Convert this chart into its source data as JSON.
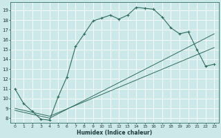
{
  "title": "",
  "xlabel": "Humidex (Indice chaleur)",
  "bg_color": "#cde8e8",
  "grid_color": "#ffffff",
  "line_color": "#2e6b5e",
  "xlim": [
    -0.5,
    23.5
  ],
  "ylim": [
    7.5,
    19.8
  ],
  "xticks": [
    0,
    1,
    2,
    3,
    4,
    5,
    6,
    7,
    8,
    9,
    10,
    11,
    12,
    13,
    14,
    15,
    16,
    17,
    18,
    19,
    20,
    21,
    22,
    23
  ],
  "yticks": [
    8,
    9,
    10,
    11,
    12,
    13,
    14,
    15,
    16,
    17,
    18,
    19
  ],
  "line1_x": [
    0,
    1,
    2,
    3,
    4,
    5,
    6,
    7,
    8,
    9,
    10,
    11,
    12,
    13,
    14,
    15,
    16,
    17,
    18,
    19,
    20,
    21,
    22,
    23
  ],
  "line1_y": [
    11.0,
    9.5,
    8.7,
    7.9,
    7.8,
    10.2,
    12.2,
    15.3,
    16.6,
    17.9,
    18.2,
    18.5,
    18.1,
    18.5,
    19.3,
    19.2,
    19.1,
    18.3,
    17.2,
    16.6,
    16.8,
    15.0,
    13.3,
    13.5
  ],
  "line2_x": [
    0,
    4,
    23
  ],
  "line2_y": [
    8.8,
    8.0,
    16.6
  ],
  "line3_x": [
    0,
    4,
    23
  ],
  "line3_y": [
    9.0,
    8.2,
    15.2
  ]
}
